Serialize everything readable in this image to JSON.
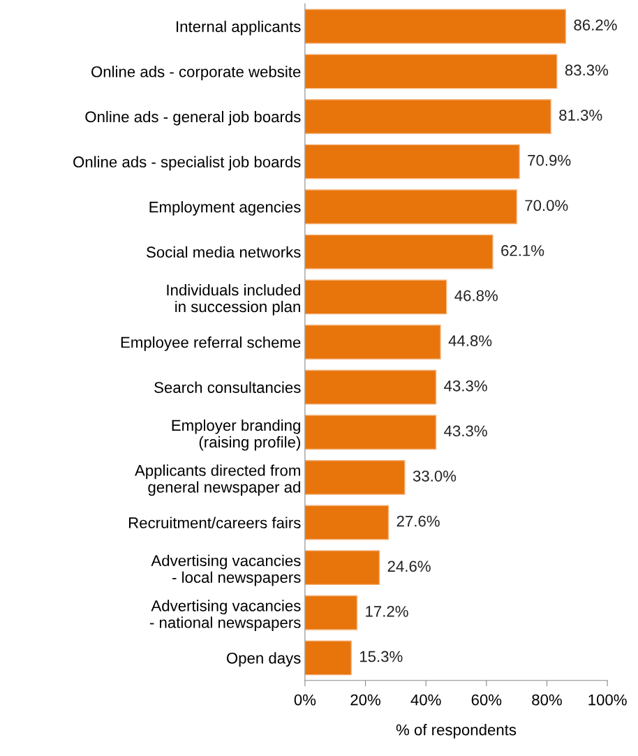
{
  "chart_data": {
    "type": "bar",
    "orientation": "horizontal",
    "xlabel": "% of respondents",
    "categories": [
      "Internal applicants",
      "Online ads - corporate website",
      "Online ads - general job boards",
      "Online ads - specialist job boards",
      "Employment agencies",
      "Social media networks",
      "Individuals included\nin succession plan",
      "Employee referral scheme",
      "Search consultancies",
      "Employer branding\n(raising profile)",
      "Applicants directed from\ngeneral newspaper ad",
      "Recruitment/careers fairs",
      "Advertising vacancies\n- local newspapers",
      "Advertising vacancies\n- national newspapers",
      "Open days"
    ],
    "values": [
      86.2,
      83.3,
      81.3,
      70.9,
      70.0,
      62.1,
      46.8,
      44.8,
      43.3,
      43.3,
      33.0,
      27.6,
      24.6,
      17.2,
      15.3
    ],
    "value_labels": [
      "86.2%",
      "83.3%",
      "81.3%",
      "70.9%",
      "70.0%",
      "62.1%",
      "46.8%",
      "44.8%",
      "43.3%",
      "43.3%",
      "33.0%",
      "27.6%",
      "24.6%",
      "17.2%",
      "15.3%"
    ],
    "color": "#e8740c",
    "xlim": [
      0,
      100
    ],
    "xticks": [
      {
        "value": 0,
        "label": "0%"
      },
      {
        "value": 20,
        "label": "20%"
      },
      {
        "value": 40,
        "label": "40%"
      },
      {
        "value": 60,
        "label": "60%"
      },
      {
        "value": 80,
        "label": "80%"
      },
      {
        "value": 100,
        "label": "100%"
      }
    ],
    "grid": false
  }
}
